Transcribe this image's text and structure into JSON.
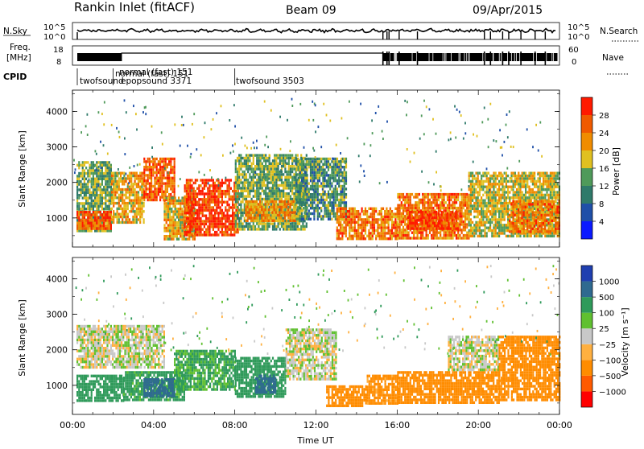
{
  "header": {
    "station": "Rankin Inlet (fitACF)",
    "beam": "Beam 09",
    "date": "09/Apr/2015"
  },
  "strip": {
    "left_labels": [
      "N.Sky",
      "Freq.",
      "[MHz]",
      "CPID"
    ],
    "right_labels": [
      "N.Search",
      "Nave"
    ],
    "nsky_ticks": [
      "10^5",
      "10^0"
    ],
    "nsearch_ticks": [
      "10^5",
      "10^0"
    ],
    "freq_ticks": [
      "18",
      "8"
    ],
    "nave_ticks": [
      "60",
      "0"
    ],
    "cpid_labels": [
      {
        "text": "twofsound",
        "hour": 0.3
      },
      {
        "text": "normal (fast) 151",
        "hour": 2.1
      },
      {
        "text": "normal (fast) 151",
        "hour": 2.2
      },
      {
        "text": "epopsound 3371",
        "hour": 2.0
      },
      {
        "text": "twofsound 3503",
        "hour": 8.0
      }
    ]
  },
  "colors": {
    "power_scale": [
      "#0a1aff",
      "#1f4fa8",
      "#2f7a6a",
      "#4f9a5a",
      "#e0c020",
      "#f08c00",
      "#f05a00",
      "#ff1a00"
    ],
    "velocity_scale": [
      "#ff0000",
      "#ff5a00",
      "#ff8c00",
      "#ffb040",
      "#c8c8c8",
      "#60c030",
      "#2f9a5a",
      "#2f6a90",
      "#1f3fb0"
    ]
  },
  "chart_data": [
    {
      "type": "heatmap",
      "panel": "power",
      "xlabel": "",
      "ylabel": "Slant Range [km]",
      "xlim": [
        0,
        24
      ],
      "ylim": [
        180,
        4600
      ],
      "yticks": [
        "1000",
        "2000",
        "3000",
        "4000"
      ],
      "colorbar": {
        "label": "Power [dB]",
        "ticks": [
          "28",
          "24",
          "20",
          "16",
          "12",
          "8",
          "4"
        ],
        "range": [
          0,
          32
        ]
      },
      "regions": [
        {
          "t0": 0.2,
          "t1": 1.9,
          "r0": 600,
          "r1": 2600,
          "value": 14
        },
        {
          "t0": 0.2,
          "t1": 1.9,
          "r0": 700,
          "r1": 1200,
          "value": 26
        },
        {
          "t0": 1.9,
          "t1": 3.5,
          "r0": 900,
          "r1": 2300,
          "value": 20
        },
        {
          "t0": 3.5,
          "t1": 5.0,
          "r0": 1500,
          "r1": 2700,
          "value": 26
        },
        {
          "t0": 4.5,
          "t1": 6.0,
          "r0": 400,
          "r1": 1600,
          "value": 20
        },
        {
          "t0": 5.5,
          "t1": 8.2,
          "r0": 500,
          "r1": 2100,
          "value": 28
        },
        {
          "t0": 8.0,
          "t1": 11.5,
          "r0": 700,
          "r1": 2800,
          "value": 14
        },
        {
          "t0": 8.5,
          "t1": 11.0,
          "r0": 900,
          "r1": 1500,
          "value": 22
        },
        {
          "t0": 11.0,
          "t1": 13.5,
          "r0": 1000,
          "r1": 2700,
          "value": 12
        },
        {
          "t0": 13.0,
          "t1": 16.0,
          "r0": 400,
          "r1": 1300,
          "value": 24
        },
        {
          "t0": 16.0,
          "t1": 19.5,
          "r0": 400,
          "r1": 1700,
          "value": 24
        },
        {
          "t0": 16.5,
          "t1": 19.0,
          "r0": 700,
          "r1": 1200,
          "value": 28
        },
        {
          "t0": 19.5,
          "t1": 24.0,
          "r0": 500,
          "r1": 2300,
          "value": 18
        },
        {
          "t0": 21.5,
          "t1": 24.0,
          "r0": 600,
          "r1": 1500,
          "value": 24
        }
      ]
    },
    {
      "type": "heatmap",
      "panel": "velocity",
      "xlabel": "Time UT",
      "ylabel": "Slant Range [km]",
      "xlim": [
        0,
        24
      ],
      "ylim": [
        180,
        4600
      ],
      "xticks": [
        "00:00",
        "04:00",
        "08:00",
        "12:00",
        "16:00",
        "20:00",
        "00:00"
      ],
      "yticks": [
        "1000",
        "2000",
        "3000",
        "4000"
      ],
      "colorbar": {
        "label": "Velocity [m s⁻¹]",
        "ticks": [
          "1000",
          "500",
          "100",
          "25",
          "−25",
          "−100",
          "−500",
          "−1000"
        ]
      },
      "regions": [
        {
          "t0": 0.2,
          "t1": 4.5,
          "r0": 1500,
          "r1": 2700,
          "value": 0
        },
        {
          "t0": 0.2,
          "t1": 2.5,
          "r0": 600,
          "r1": 1300,
          "value": 200
        },
        {
          "t0": 2.5,
          "t1": 5.5,
          "r0": 600,
          "r1": 1400,
          "value": 150
        },
        {
          "t0": 3.5,
          "t1": 5.0,
          "r0": 700,
          "r1": 1200,
          "value": 600
        },
        {
          "t0": 5.0,
          "t1": 8.0,
          "r0": 900,
          "r1": 2000,
          "value": 120
        },
        {
          "t0": 8.0,
          "t1": 10.5,
          "r0": 700,
          "r1": 1800,
          "value": 250
        },
        {
          "t0": 9.0,
          "t1": 10.0,
          "r0": 800,
          "r1": 1300,
          "value": 700
        },
        {
          "t0": 10.5,
          "t1": 13.0,
          "r0": 1200,
          "r1": 2600,
          "value": 0
        },
        {
          "t0": 12.5,
          "t1": 14.5,
          "r0": 400,
          "r1": 1000,
          "value": -300
        },
        {
          "t0": 14.5,
          "t1": 16.0,
          "r0": 500,
          "r1": 1300,
          "value": -150
        },
        {
          "t0": 16.0,
          "t1": 21.0,
          "r0": 500,
          "r1": 1400,
          "value": -300
        },
        {
          "t0": 18.5,
          "t1": 21.0,
          "r0": 1400,
          "r1": 2400,
          "value": 0
        },
        {
          "t0": 21.0,
          "t1": 24.0,
          "r0": 600,
          "r1": 2400,
          "value": -200
        }
      ]
    }
  ]
}
